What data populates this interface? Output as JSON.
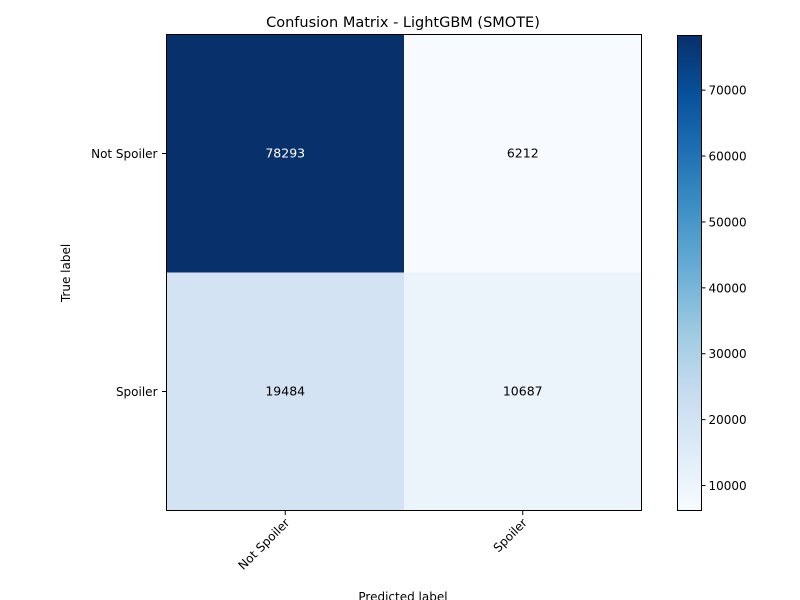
{
  "chart_data": {
    "type": "heatmap",
    "title": "Confusion Matrix - LightGBM (SMOTE)",
    "xlabel": "Predicted label",
    "ylabel": "True label",
    "x_categories": [
      "Not Spoiler",
      "Spoiler"
    ],
    "y_categories": [
      "Not Spoiler",
      "Spoiler"
    ],
    "values": [
      [
        78293,
        6212
      ],
      [
        19484,
        10687
      ]
    ],
    "colormap": "Blues",
    "colorbar": {
      "ticks": [
        10000,
        20000,
        30000,
        40000,
        50000,
        60000,
        70000
      ],
      "tick_labels": [
        "10000",
        "20000",
        "30000",
        "40000",
        "50000",
        "60000",
        "70000"
      ],
      "range": [
        6212,
        78293
      ]
    },
    "grid": false
  }
}
